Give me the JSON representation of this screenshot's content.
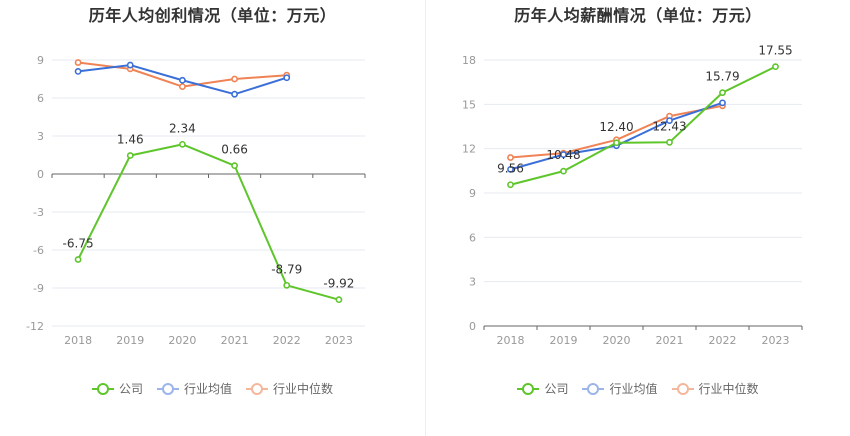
{
  "charts": [
    {
      "title": "历年人均创利情况（单位：万元）",
      "legend": [
        "公司",
        "行业均值",
        "行业中位数"
      ]
    },
    {
      "title": "历年人均薪酬情况（单位：万元）",
      "legend": [
        "公司",
        "行业均值",
        "行业中位数"
      ]
    }
  ],
  "colors": {
    "company": "#5ec52b",
    "industry_avg": "#3b6fd8",
    "industry_median": "#ef8355"
  },
  "chart_data": [
    {
      "type": "line",
      "title": "历年人均创利情况（单位：万元）",
      "categories": [
        "2018",
        "2019",
        "2020",
        "2021",
        "2022",
        "2023"
      ],
      "ylim": [
        -12,
        9
      ],
      "yticks": [
        9,
        6,
        3,
        0,
        -3,
        -6,
        -9,
        -12
      ],
      "grid": true,
      "legend_position": "bottom",
      "series": [
        {
          "name": "公司",
          "values": [
            -6.75,
            1.46,
            2.34,
            0.66,
            -8.79,
            -9.92
          ],
          "labels": [
            "-6.75",
            "1.46",
            "2.34",
            "0.66",
            "-8.79",
            "-9.92"
          ]
        },
        {
          "name": "行业均值",
          "values": [
            8.1,
            8.6,
            7.4,
            6.3,
            7.6,
            null
          ]
        },
        {
          "name": "行业中位数",
          "values": [
            8.8,
            8.3,
            6.9,
            7.5,
            7.8,
            null
          ]
        }
      ]
    },
    {
      "type": "line",
      "title": "历年人均薪酬情况（单位：万元）",
      "categories": [
        "2018",
        "2019",
        "2020",
        "2021",
        "2022",
        "2023"
      ],
      "ylim": [
        0,
        18
      ],
      "yticks": [
        18,
        15,
        12,
        9,
        6,
        3,
        0
      ],
      "grid": true,
      "legend_position": "bottom",
      "series": [
        {
          "name": "公司",
          "values": [
            9.56,
            10.48,
            12.4,
            12.43,
            15.79,
            17.55
          ],
          "labels": [
            "9.56",
            "10.48",
            "12.40",
            "12.43",
            "15.79",
            "17.55"
          ]
        },
        {
          "name": "行业均值",
          "values": [
            10.6,
            11.6,
            12.2,
            13.9,
            15.1,
            null
          ]
        },
        {
          "name": "行业中位数",
          "values": [
            11.4,
            11.7,
            12.6,
            14.2,
            14.9,
            null
          ]
        }
      ]
    }
  ]
}
